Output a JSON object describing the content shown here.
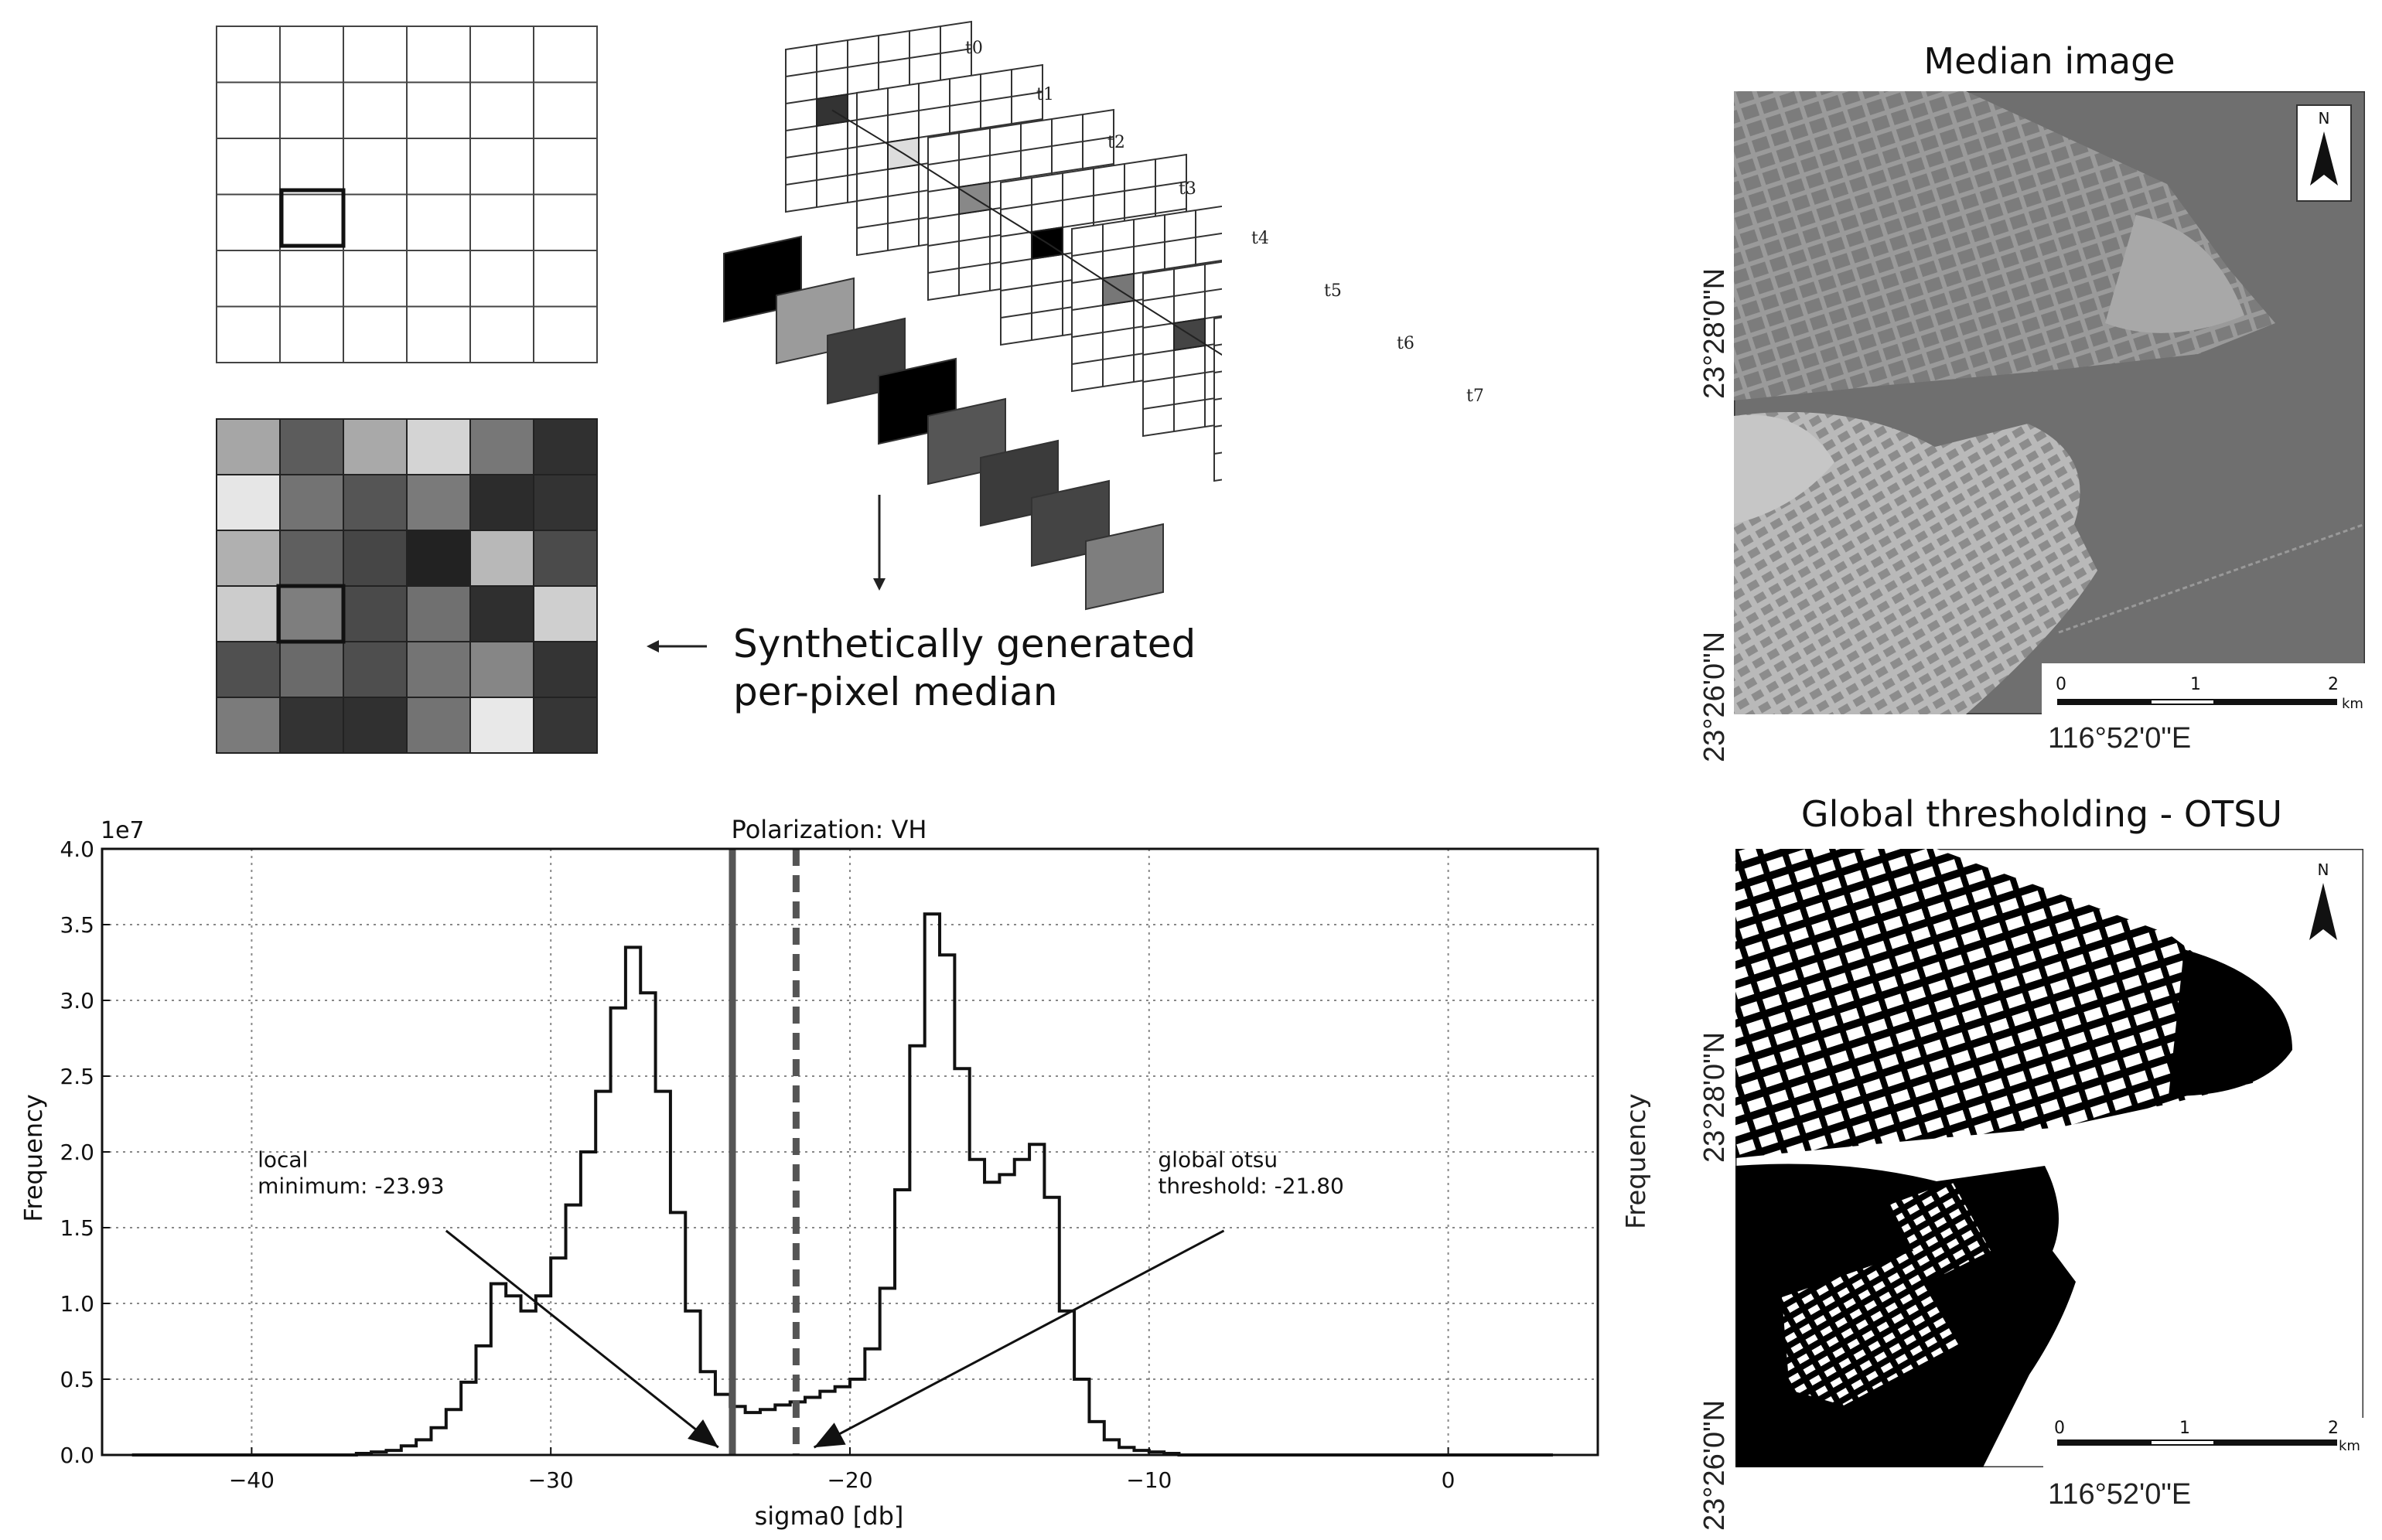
{
  "diagram": {
    "time_steps": [
      "t0",
      "t1",
      "t2",
      "t3",
      "t4",
      "t5",
      "t6",
      "t7"
    ],
    "caption_line1": "Synthetically generated",
    "caption_line2": "per-pixel median",
    "median_grid_shades": [
      [
        "#a6a6a6",
        "#5c5c5c",
        "#a9a9a9",
        "#d4d4d4",
        "#777777",
        "#303030"
      ],
      [
        "#e6e6e6",
        "#737373",
        "#555555",
        "#7a7a7a",
        "#2c2c2c",
        "#333333"
      ],
      [
        "#b0b0b0",
        "#5f5f5f",
        "#464646",
        "#222222",
        "#b8b8b8",
        "#4b4b4b"
      ],
      [
        "#cccccc",
        "#7e7e7e",
        "#4a4a4a",
        "#707070",
        "#2f2f2f",
        "#cfcfcf"
      ],
      [
        "#505050",
        "#6a6a6a",
        "#4e4e4e",
        "#747474",
        "#868686",
        "#343434"
      ],
      [
        "#7b7b7b",
        "#333333",
        "#303030",
        "#737373",
        "#e8e8e8",
        "#363636"
      ]
    ],
    "stack_pixel_shades": [
      "#333333",
      "#dddddd",
      "#888888",
      "#000000",
      "#777777",
      "#444444",
      "#555555",
      "#999999"
    ],
    "swatch_shades": [
      "#000000",
      "#9b9b9b",
      "#3d3d3d",
      "#000000",
      "#555555",
      "#3b3b3b",
      "#444444",
      "#7e7e7e"
    ]
  },
  "median_map": {
    "title": "Median image",
    "lat_top": "23°28'0\"N",
    "lat_bottom": "23°26'0\"N",
    "lon": "116°52'0\"E",
    "scale_ticks": [
      "0",
      "1",
      "2"
    ],
    "scale_unit": "km",
    "north": "N"
  },
  "otsu_map": {
    "title": "Global thresholding - OTSU",
    "lat_top": "23°28'0\"N",
    "lat_bottom": "23°26'0\"N",
    "lon": "116°52'0\"E",
    "scale_ticks": [
      "0",
      "1",
      "2"
    ],
    "scale_unit": "km",
    "north": "N",
    "side_label": "Frequency"
  },
  "chart_data": {
    "type": "histogram",
    "title": "Polarization: VH",
    "xlabel": "sigma0 [db]",
    "ylabel": "Frequency",
    "y_multiplier": "1e7",
    "xlim": [
      -45,
      5
    ],
    "ylim": [
      0,
      4.0
    ],
    "x_ticks": [
      -40,
      -30,
      -20,
      -10,
      0
    ],
    "x_tick_labels": [
      "−40",
      "−30",
      "−20",
      "−10",
      "0"
    ],
    "y_ticks": [
      "0.0",
      "0.5",
      "1.0",
      "1.5",
      "2.0",
      "2.5",
      "3.0",
      "3.5",
      "4.0"
    ],
    "grid": true,
    "bin_width": 0.5,
    "bins": [
      {
        "x": -44.0,
        "y": 0.0
      },
      {
        "x": -37.0,
        "y": 0.0
      },
      {
        "x": -36.5,
        "y": 0.01
      },
      {
        "x": -36.0,
        "y": 0.02
      },
      {
        "x": -35.5,
        "y": 0.03
      },
      {
        "x": -35.0,
        "y": 0.06
      },
      {
        "x": -34.5,
        "y": 0.1
      },
      {
        "x": -34.0,
        "y": 0.18
      },
      {
        "x": -33.5,
        "y": 0.3
      },
      {
        "x": -33.0,
        "y": 0.48
      },
      {
        "x": -32.5,
        "y": 0.72
      },
      {
        "x": -32.0,
        "y": 1.13
      },
      {
        "x": -31.5,
        "y": 1.05
      },
      {
        "x": -31.0,
        "y": 0.95
      },
      {
        "x": -30.5,
        "y": 1.05
      },
      {
        "x": -30.0,
        "y": 1.3
      },
      {
        "x": -29.5,
        "y": 1.65
      },
      {
        "x": -29.0,
        "y": 2.0
      },
      {
        "x": -28.5,
        "y": 2.4
      },
      {
        "x": -28.0,
        "y": 2.95
      },
      {
        "x": -27.5,
        "y": 3.35
      },
      {
        "x": -27.0,
        "y": 3.05
      },
      {
        "x": -26.5,
        "y": 2.4
      },
      {
        "x": -26.0,
        "y": 1.6
      },
      {
        "x": -25.5,
        "y": 0.95
      },
      {
        "x": -25.0,
        "y": 0.55
      },
      {
        "x": -24.5,
        "y": 0.4
      },
      {
        "x": -24.0,
        "y": 0.32
      },
      {
        "x": -23.5,
        "y": 0.28
      },
      {
        "x": -23.0,
        "y": 0.3
      },
      {
        "x": -22.5,
        "y": 0.33
      },
      {
        "x": -22.0,
        "y": 0.35
      },
      {
        "x": -21.5,
        "y": 0.38
      },
      {
        "x": -21.0,
        "y": 0.42
      },
      {
        "x": -20.5,
        "y": 0.45
      },
      {
        "x": -20.0,
        "y": 0.5
      },
      {
        "x": -19.5,
        "y": 0.7
      },
      {
        "x": -19.0,
        "y": 1.1
      },
      {
        "x": -18.5,
        "y": 1.75
      },
      {
        "x": -18.0,
        "y": 2.7
      },
      {
        "x": -17.5,
        "y": 3.57
      },
      {
        "x": -17.0,
        "y": 3.3
      },
      {
        "x": -16.5,
        "y": 2.55
      },
      {
        "x": -16.0,
        "y": 1.95
      },
      {
        "x": -15.5,
        "y": 1.8
      },
      {
        "x": -15.0,
        "y": 1.85
      },
      {
        "x": -14.5,
        "y": 1.95
      },
      {
        "x": -14.0,
        "y": 2.05
      },
      {
        "x": -13.5,
        "y": 1.7
      },
      {
        "x": -13.0,
        "y": 0.95
      },
      {
        "x": -12.5,
        "y": 0.5
      },
      {
        "x": -12.0,
        "y": 0.22
      },
      {
        "x": -11.5,
        "y": 0.1
      },
      {
        "x": -11.0,
        "y": 0.05
      },
      {
        "x": -10.5,
        "y": 0.03
      },
      {
        "x": -10.0,
        "y": 0.02
      },
      {
        "x": -9.5,
        "y": 0.01
      },
      {
        "x": -9.0,
        "y": 0.0
      },
      {
        "x": 3.0,
        "y": 0.0
      }
    ],
    "lines": [
      {
        "x": -23.93,
        "style": "solid"
      },
      {
        "x": -21.8,
        "style": "dashed"
      }
    ],
    "annotations": [
      {
        "text_line1": "local",
        "text_line2": "minimum: -23.93",
        "text_x": -39.8,
        "text_y": 1.9,
        "from": [
          -33.5,
          1.48
        ],
        "to": [
          -24.4,
          0.05
        ]
      },
      {
        "text_line1": "global otsu",
        "text_line2": "threshold: -21.80",
        "text_x": -9.7,
        "text_y": 1.9,
        "from": [
          -7.5,
          1.48
        ],
        "to": [
          -21.2,
          0.05
        ]
      }
    ]
  }
}
